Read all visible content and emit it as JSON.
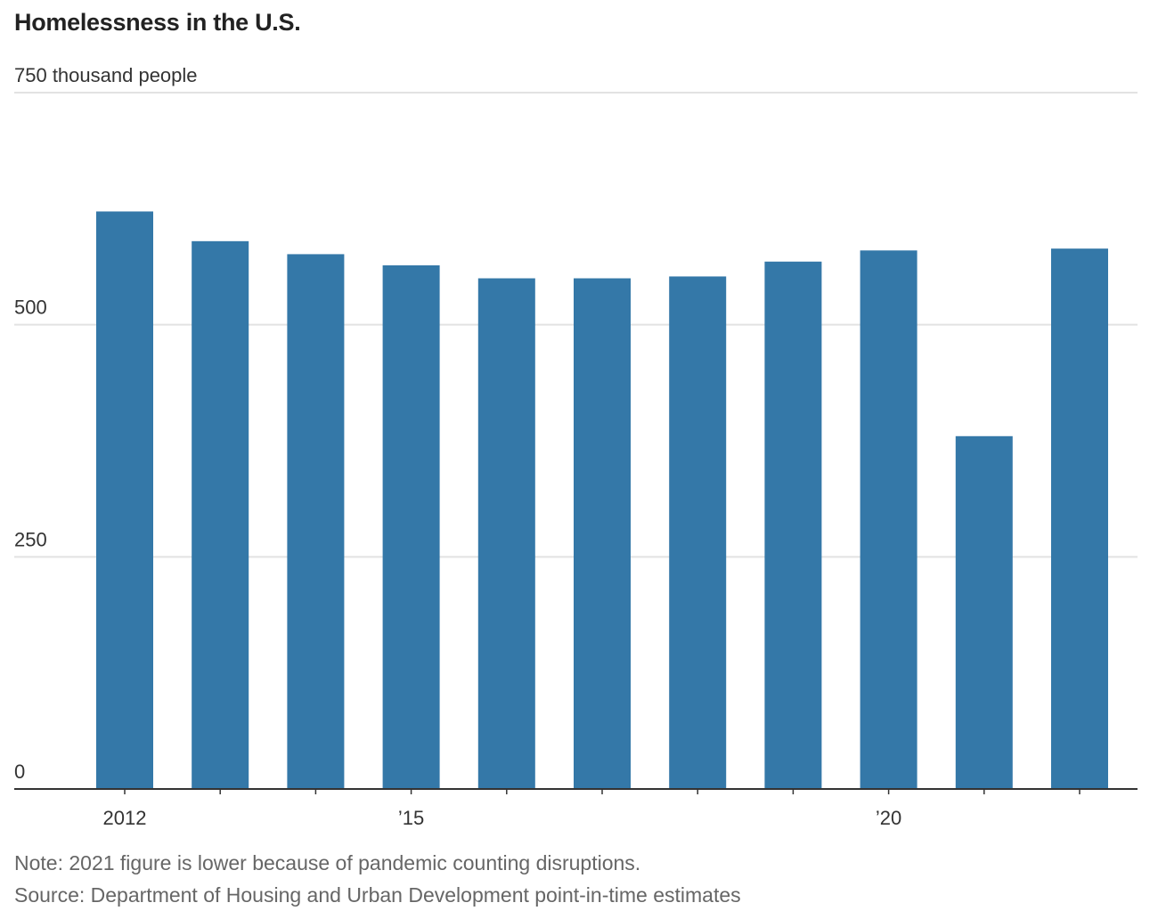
{
  "chart_data": {
    "type": "bar",
    "title": "Homelessness in the U.S.",
    "ylabel": "thousand people",
    "ylim": [
      0,
      750
    ],
    "yticks": [
      {
        "value": 0,
        "label": "0"
      },
      {
        "value": 250,
        "label": "250"
      },
      {
        "value": 500,
        "label": "500"
      },
      {
        "value": 750,
        "label": "750 thousand people"
      }
    ],
    "categories": [
      "2012",
      "2013",
      "2014",
      "2015",
      "2016",
      "2017",
      "2018",
      "2019",
      "2020",
      "2021",
      "2022"
    ],
    "xtick_labels": [
      "2012",
      "",
      "",
      "’15",
      "",
      "",
      "",
      "",
      "’20",
      "",
      ""
    ],
    "values": [
      622,
      590,
      576,
      564,
      550,
      550,
      552,
      568,
      580,
      380,
      582
    ],
    "grid": true,
    "bar_color": "#3478a8"
  },
  "notes": {
    "note": "Note: 2021 figure is lower because of pandemic counting disruptions.",
    "source": "Source: Department of Housing and Urban Development point-in-time estimates"
  }
}
